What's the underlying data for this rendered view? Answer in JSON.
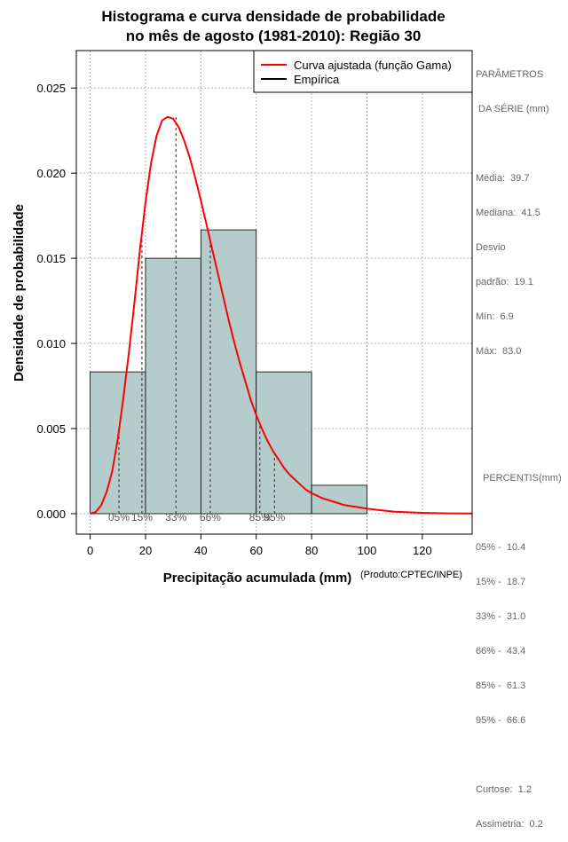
{
  "chart_data": {
    "type": "histogram",
    "title_line1": "Histograma e curva densidade de probabilidade",
    "title_line2": "no mês de agosto (1981-2010): Região 30",
    "xlabel": "Precipitação acumulada (mm)",
    "ylabel": "Densidade de probabilidade",
    "credit": "(Produto:CPTEC/INPE)",
    "xlim": [
      -5,
      138
    ],
    "ylim": [
      -0.0012,
      0.0272
    ],
    "x_ticks": [
      0,
      20,
      40,
      60,
      80,
      100,
      120
    ],
    "y_ticks": [
      "0.000",
      "0.005",
      "0.010",
      "0.015",
      "0.020",
      "0.025"
    ],
    "grid": true,
    "legend_position": "top-right",
    "legend": [
      {
        "label": "Curva ajustada (função Gama)",
        "color": "#ff0000"
      },
      {
        "label": "Empírica",
        "color": "#000000"
      }
    ],
    "bins": [
      {
        "x0": 0,
        "x1": 20,
        "density": 0.00833
      },
      {
        "x0": 20,
        "x1": 40,
        "density": 0.015
      },
      {
        "x0": 40,
        "x1": 60,
        "density": 0.01667
      },
      {
        "x0": 60,
        "x1": 80,
        "density": 0.00833
      },
      {
        "x0": 80,
        "x1": 100,
        "density": 0.00167
      }
    ],
    "bar_color": "#b4cccc",
    "curve": {
      "x": [
        0,
        2,
        4,
        6,
        8,
        10,
        12,
        14,
        16,
        18,
        20,
        22,
        24,
        26,
        28,
        30,
        32,
        34,
        36,
        38,
        40,
        42,
        44,
        46,
        48,
        50,
        52,
        54,
        56,
        58,
        60,
        62,
        64,
        66,
        68,
        70,
        72,
        74,
        76,
        78,
        80,
        84,
        88,
        92,
        96,
        100,
        105,
        110,
        115,
        120,
        125,
        130,
        138
      ],
      "y": [
        0.0,
        0.0001,
        0.0005,
        0.0013,
        0.0025,
        0.0044,
        0.0068,
        0.0095,
        0.0124,
        0.0155,
        0.0183,
        0.0206,
        0.0222,
        0.0231,
        0.0233,
        0.0232,
        0.0227,
        0.0219,
        0.0209,
        0.0197,
        0.0184,
        0.017,
        0.0156,
        0.0142,
        0.0128,
        0.0114,
        0.0101,
        0.0089,
        0.0078,
        0.0067,
        0.0058,
        0.005,
        0.0043,
        0.0037,
        0.0032,
        0.0027,
        0.0023,
        0.002,
        0.0017,
        0.0014,
        0.0012,
        0.0009,
        0.0007,
        0.0005,
        0.0004,
        0.0003,
        0.0002,
        0.00012,
        8e-05,
        5e-05,
        3e-05,
        2e-05,
        1e-05
      ]
    },
    "percentile_marks": [
      {
        "label": "05%",
        "x": 10.4,
        "curve_y": 0.0048
      },
      {
        "label": "15%",
        "x": 18.7,
        "curve_y": 0.0165
      },
      {
        "label": "33%",
        "x": 31.0,
        "curve_y": 0.0233
      },
      {
        "label": "66%",
        "x": 43.4,
        "curve_y": 0.016
      },
      {
        "label": "85%",
        "x": 61.3,
        "curve_y": 0.0053
      },
      {
        "label": "95%",
        "x": 66.6,
        "curve_y": 0.0036
      }
    ]
  },
  "side_panel": {
    "params_title_1": "PARÂMETROS",
    "params_title_2": " DA SÉRIE (mm)",
    "media": "Média:  39.7",
    "mediana": "Mediana:  41.5",
    "desvio_1": "Desvio",
    "desvio_2": "padrão:  19.1",
    "min": "Mín:  6.9",
    "max": "Máx:  83.0",
    "percentis_title": "PERCENTIS(mm)",
    "p05": "05% -  10.4",
    "p15": "15% -  18.7",
    "p33": "33% -  31.0",
    "p66": "66% -  43.4",
    "p85": "85% -  61.3",
    "p95": "95% -  66.6",
    "curtose": "Curtose:  1.2",
    "assimetria": "Assimetria:  0.2"
  }
}
